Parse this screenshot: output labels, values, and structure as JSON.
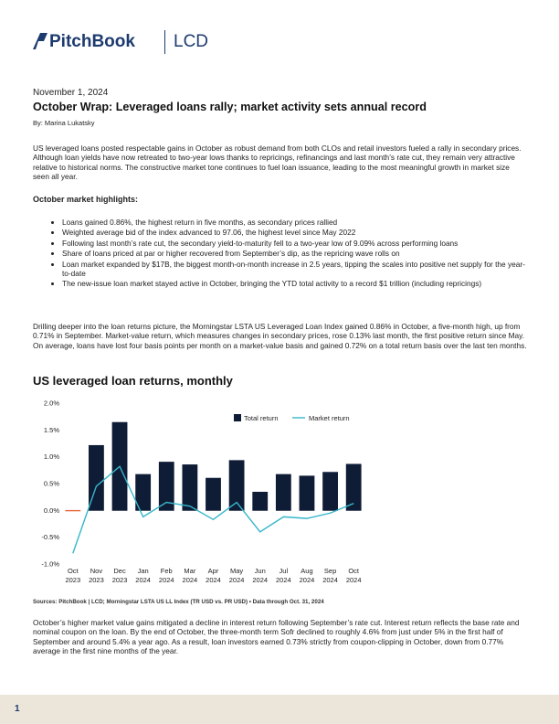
{
  "header": {
    "brand": "PitchBook",
    "product": "LCD"
  },
  "article": {
    "date": "November 1, 2024",
    "title": "October Wrap: Leveraged loans rally; market activity sets annual record",
    "byline": "By: Marina Lukatsky",
    "intro": "US leveraged loans posted respectable gains in October as robust demand from both CLOs and retail investors fueled a rally in secondary prices. Although loan yields have now retreated to two-year lows thanks to repricings, refinancings and last month’s rate cut, they remain very attractive relative to historical norms. The constructive market tone continues to fuel loan issuance, leading to the most meaningful growth in market size seen all year.",
    "highlights_heading": "October market highlights:",
    "highlights": [
      "Loans gained 0.86%, the highest return in five months, as secondary prices rallied",
      "Weighted average bid of the index advanced to 97.06, the highest level since May 2022",
      "Following last month’s rate cut, the secondary yield-to-maturity fell to a two-year low of 9.09% across performing loans",
      "Share of loans priced at par or higher recovered from September’s dip, as the repricing wave rolls on",
      "Loan market expanded by $17B, the biggest month-on-month increase in 2.5 years, tipping the scales into positive net supply for the year-to-date",
      "The new-issue loan market stayed active in October, bringing the YTD total activity to a record $1 trillion (including repricings)"
    ],
    "paragraph2": "Drilling deeper into the loan returns picture, the Morningstar LSTA US Leveraged Loan Index gained 0.86% in October, a five-month high, up from 0.71% in September. Market-value return, which measures changes in secondary prices, rose 0.13% last month, the first positive return since May. On average, loans have lost four basis points per month on a market-value basis and gained 0.72% on a total return basis over the last ten months.",
    "paragraph3": "October’s higher market value gains mitigated a decline in interest return following September’s rate cut. Interest return reflects the base rate and nominal coupon on the loan. By the end of October, the three-month term Sofr declined to roughly 4.6% from just under 5% in the first half of September and around 5.4% a year ago. As a result, loan investors earned 0.73% strictly from coupon-clipping in October, down from 0.77% average in the first nine months of the year."
  },
  "footer": {
    "page": "1"
  },
  "chart_data": {
    "type": "bar_line",
    "title": "US leveraged loan returns, monthly",
    "source": "Sources: PitchBook | LCD; Morningstar LSTA US LL Index (TR USD vs. PR USD) • Data through Oct. 31, 2024",
    "categories": [
      "Oct 2023",
      "Nov 2023",
      "Dec 2023",
      "Jan 2024",
      "Feb 2024",
      "Mar 2024",
      "Apr 2024",
      "May 2024",
      "Jun 2024",
      "Jul 2024",
      "Aug 2024",
      "Sep 2024",
      "Oct 2024"
    ],
    "series": [
      {
        "name": "Total return",
        "type": "bar",
        "color": "#0f1c36",
        "negative_color": "#e8693a",
        "values": [
          -0.01,
          1.21,
          1.64,
          0.67,
          0.9,
          0.85,
          0.6,
          0.93,
          0.34,
          0.67,
          0.64,
          0.71,
          0.86
        ]
      },
      {
        "name": "Market return",
        "type": "line",
        "color": "#35b6c9",
        "values": [
          -0.8,
          0.45,
          0.82,
          -0.12,
          0.15,
          0.08,
          -0.17,
          0.15,
          -0.4,
          -0.12,
          -0.15,
          -0.05,
          0.13
        ]
      }
    ],
    "ylim": [
      -1,
      2
    ],
    "yticks": [
      {
        "value": -1,
        "label": "-1.0%"
      },
      {
        "value": -0.5,
        "label": "-0.5%"
      },
      {
        "value": 0,
        "label": "0.0%"
      },
      {
        "value": 0.5,
        "label": "0.5%"
      },
      {
        "value": 1,
        "label": "1.0%"
      },
      {
        "value": 1.5,
        "label": "1.5%"
      },
      {
        "value": 2,
        "label": "2.0%"
      }
    ],
    "legend": "top-right",
    "grid": false
  }
}
